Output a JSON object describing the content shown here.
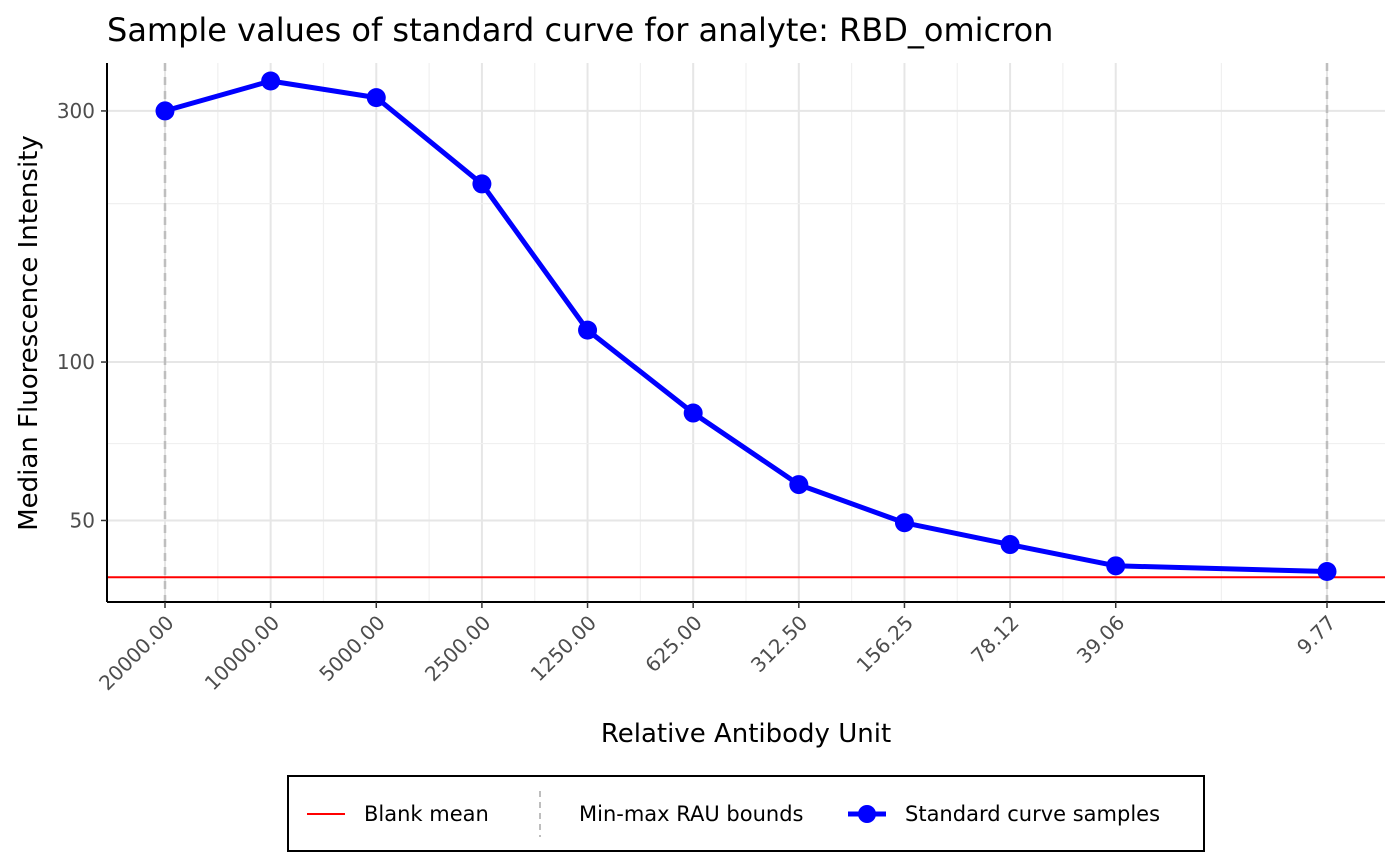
{
  "chart_data": {
    "type": "line",
    "title": "Sample values of standard curve for analyte: RBD_omicron",
    "xlabel": "Relative Antibody Unit",
    "ylabel": "Median Fluorescence Intensity",
    "y_scale": "log10",
    "ylim": [
      35,
      370
    ],
    "y_ticks": [
      {
        "value": 50,
        "label": "50"
      },
      {
        "value": 100,
        "label": "100"
      },
      {
        "value": 300,
        "label": "300"
      }
    ],
    "y_minor_gridlines": [
      70,
      200
    ],
    "grid": "on",
    "x": [
      "20000.00",
      "10000.00",
      "5000.00",
      "2500.00",
      "1250.00",
      "625.00",
      "312.50",
      "156.25",
      "78.12",
      "39.06",
      "9.77"
    ],
    "x_values": [
      20000,
      10000,
      5000,
      2500,
      1250,
      625,
      312.5,
      156.25,
      78.125,
      39.0625,
      9.765625
    ],
    "x_scale": "log2-reversed",
    "series": [
      {
        "name": "Standard curve samples",
        "color": "#0000FF",
        "values": [
          300,
          342,
          318,
          218,
          115,
          80,
          58.5,
          49.5,
          45,
          41,
          40
        ]
      }
    ],
    "blank_mean": {
      "name": "Blank mean",
      "value": 39,
      "color": "#FF0000"
    },
    "rau_bounds": {
      "name": "Min-max RAU bounds",
      "values": [
        20000,
        9.765625
      ],
      "color": "#BEBEBE"
    },
    "legend": {
      "position": "bottom",
      "entries": [
        {
          "label": "Blank mean",
          "kind": "line",
          "color": "#FF0000"
        },
        {
          "label": "Min-max RAU bounds",
          "kind": "dashed",
          "color": "#BEBEBE"
        },
        {
          "label": "Standard curve samples",
          "kind": "line-point",
          "color": "#0000FF"
        }
      ]
    }
  }
}
